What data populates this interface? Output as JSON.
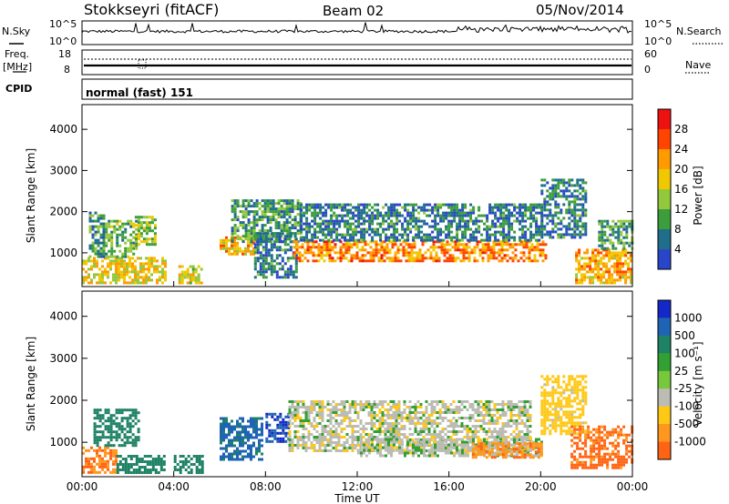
{
  "header": {
    "station": "Stokkseyri (fitACF)",
    "beam": "Beam 02",
    "date": "05/Nov/2014"
  },
  "noise_panel": {
    "left_label": "N.Sky",
    "left_ticks": [
      "10^5",
      "10^0"
    ],
    "right_label": "N.Search",
    "right_ticks": [
      "10^5",
      "10^0"
    ]
  },
  "freq_panel": {
    "left_label_line1": "Freq.",
    "left_label_line2": "[MHz]",
    "left_ticks": [
      "18",
      "8"
    ],
    "right_label": "Nave",
    "right_ticks": [
      "60",
      "0"
    ]
  },
  "cpid_panel": {
    "label": "CPID",
    "mode_text": "normal (fast) 151"
  },
  "power_panel": {
    "ylabel": "Slant Range [km]",
    "colorbar_label": "Power [dB]",
    "colorbar_ticks": [
      "28",
      "24",
      "20",
      "16",
      "12",
      "8",
      "4"
    ],
    "colors": [
      "#ee1111",
      "#ff4400",
      "#ff9a00",
      "#f0c800",
      "#94c83c",
      "#3c9d3c",
      "#1e6e8c",
      "#2a46c8",
      "#1414ff"
    ]
  },
  "velocity_panel": {
    "ylabel": "Slant Range [km]",
    "colorbar_label": "Velocity [m s⁻¹]",
    "colorbar_ticks": [
      "1000",
      "500",
      "100",
      "25",
      "-25",
      "-100",
      "-500",
      "-1000"
    ],
    "colors": [
      "#1428c8",
      "#1e64b4",
      "#1e8264",
      "#32a032",
      "#78c83c",
      "#bcbcb4",
      "#ffc814",
      "#ff961e",
      "#ff6414",
      "#e61e1e"
    ]
  },
  "x_axis": {
    "title": "Time UT",
    "ticks": [
      "00:00",
      "04:00",
      "08:00",
      "12:00",
      "16:00",
      "20:00",
      "00:00"
    ]
  },
  "chart_data": {
    "type": "heatmap",
    "x_range_hours": [
      0,
      24
    ],
    "y_range_km": [
      180,
      4600
    ],
    "y_ticks_km": [
      1000,
      2000,
      3000,
      4000
    ],
    "nsky_baseline_log10": 1.5,
    "freq_mhz": 11,
    "nave_approx": 30,
    "power_bands": [
      {
        "t0": 0.0,
        "t1": 3.6,
        "r0": 250,
        "r1": 900,
        "db": 18
      },
      {
        "t0": 0.3,
        "t1": 1.0,
        "r0": 900,
        "r1": 2000,
        "db": 10
      },
      {
        "t0": 1.0,
        "t1": 2.4,
        "r0": 900,
        "r1": 1800,
        "db": 12
      },
      {
        "t0": 2.3,
        "t1": 3.2,
        "r0": 1200,
        "r1": 1900,
        "db": 14
      },
      {
        "t0": 4.2,
        "t1": 5.2,
        "r0": 300,
        "r1": 700,
        "db": 16
      },
      {
        "t0": 6.0,
        "t1": 7.6,
        "r0": 950,
        "r1": 1400,
        "db": 20
      },
      {
        "t0": 6.5,
        "t1": 9.5,
        "r0": 1300,
        "r1": 2300,
        "db": 10
      },
      {
        "t0": 7.5,
        "t1": 9.3,
        "r0": 400,
        "r1": 1500,
        "db": 8
      },
      {
        "t0": 9.2,
        "t1": 20.2,
        "r0": 800,
        "r1": 1300,
        "db": 22
      },
      {
        "t0": 9.5,
        "t1": 20.0,
        "r0": 1300,
        "r1": 2200,
        "db": 8
      },
      {
        "t0": 20.0,
        "t1": 22.0,
        "r0": 1400,
        "r1": 2800,
        "db": 8
      },
      {
        "t0": 21.5,
        "t1": 24.0,
        "r0": 300,
        "r1": 1100,
        "db": 20
      },
      {
        "t0": 22.5,
        "t1": 24.0,
        "r0": 1100,
        "r1": 1800,
        "db": 10
      }
    ],
    "velocity_bands": [
      {
        "t0": 0.0,
        "t1": 1.5,
        "r0": 300,
        "r1": 900,
        "v": -300
      },
      {
        "t0": 1.5,
        "t1": 3.6,
        "r0": 300,
        "r1": 700,
        "v": 150
      },
      {
        "t0": 0.5,
        "t1": 2.5,
        "r0": 900,
        "r1": 1800,
        "v": 200
      },
      {
        "t0": 4.0,
        "t1": 5.2,
        "r0": 300,
        "r1": 700,
        "v": 120
      },
      {
        "t0": 6.0,
        "t1": 7.8,
        "r0": 600,
        "r1": 1600,
        "v": 400
      },
      {
        "t0": 8.0,
        "t1": 9.0,
        "r0": 1000,
        "r1": 1700,
        "v": 700
      },
      {
        "t0": 9.0,
        "t1": 19.5,
        "r0": 800,
        "r1": 2000,
        "v": 0
      },
      {
        "t0": 12.0,
        "t1": 20.0,
        "r0": 700,
        "r1": 1100,
        "v": 5
      },
      {
        "t0": 17.0,
        "t1": 20.0,
        "r0": 650,
        "r1": 1000,
        "v": -250
      },
      {
        "t0": 20.0,
        "t1": 22.0,
        "r0": 1200,
        "r1": 2600,
        "v": -60
      },
      {
        "t0": 21.3,
        "t1": 24.0,
        "r0": 400,
        "r1": 1400,
        "v": -400
      }
    ]
  }
}
